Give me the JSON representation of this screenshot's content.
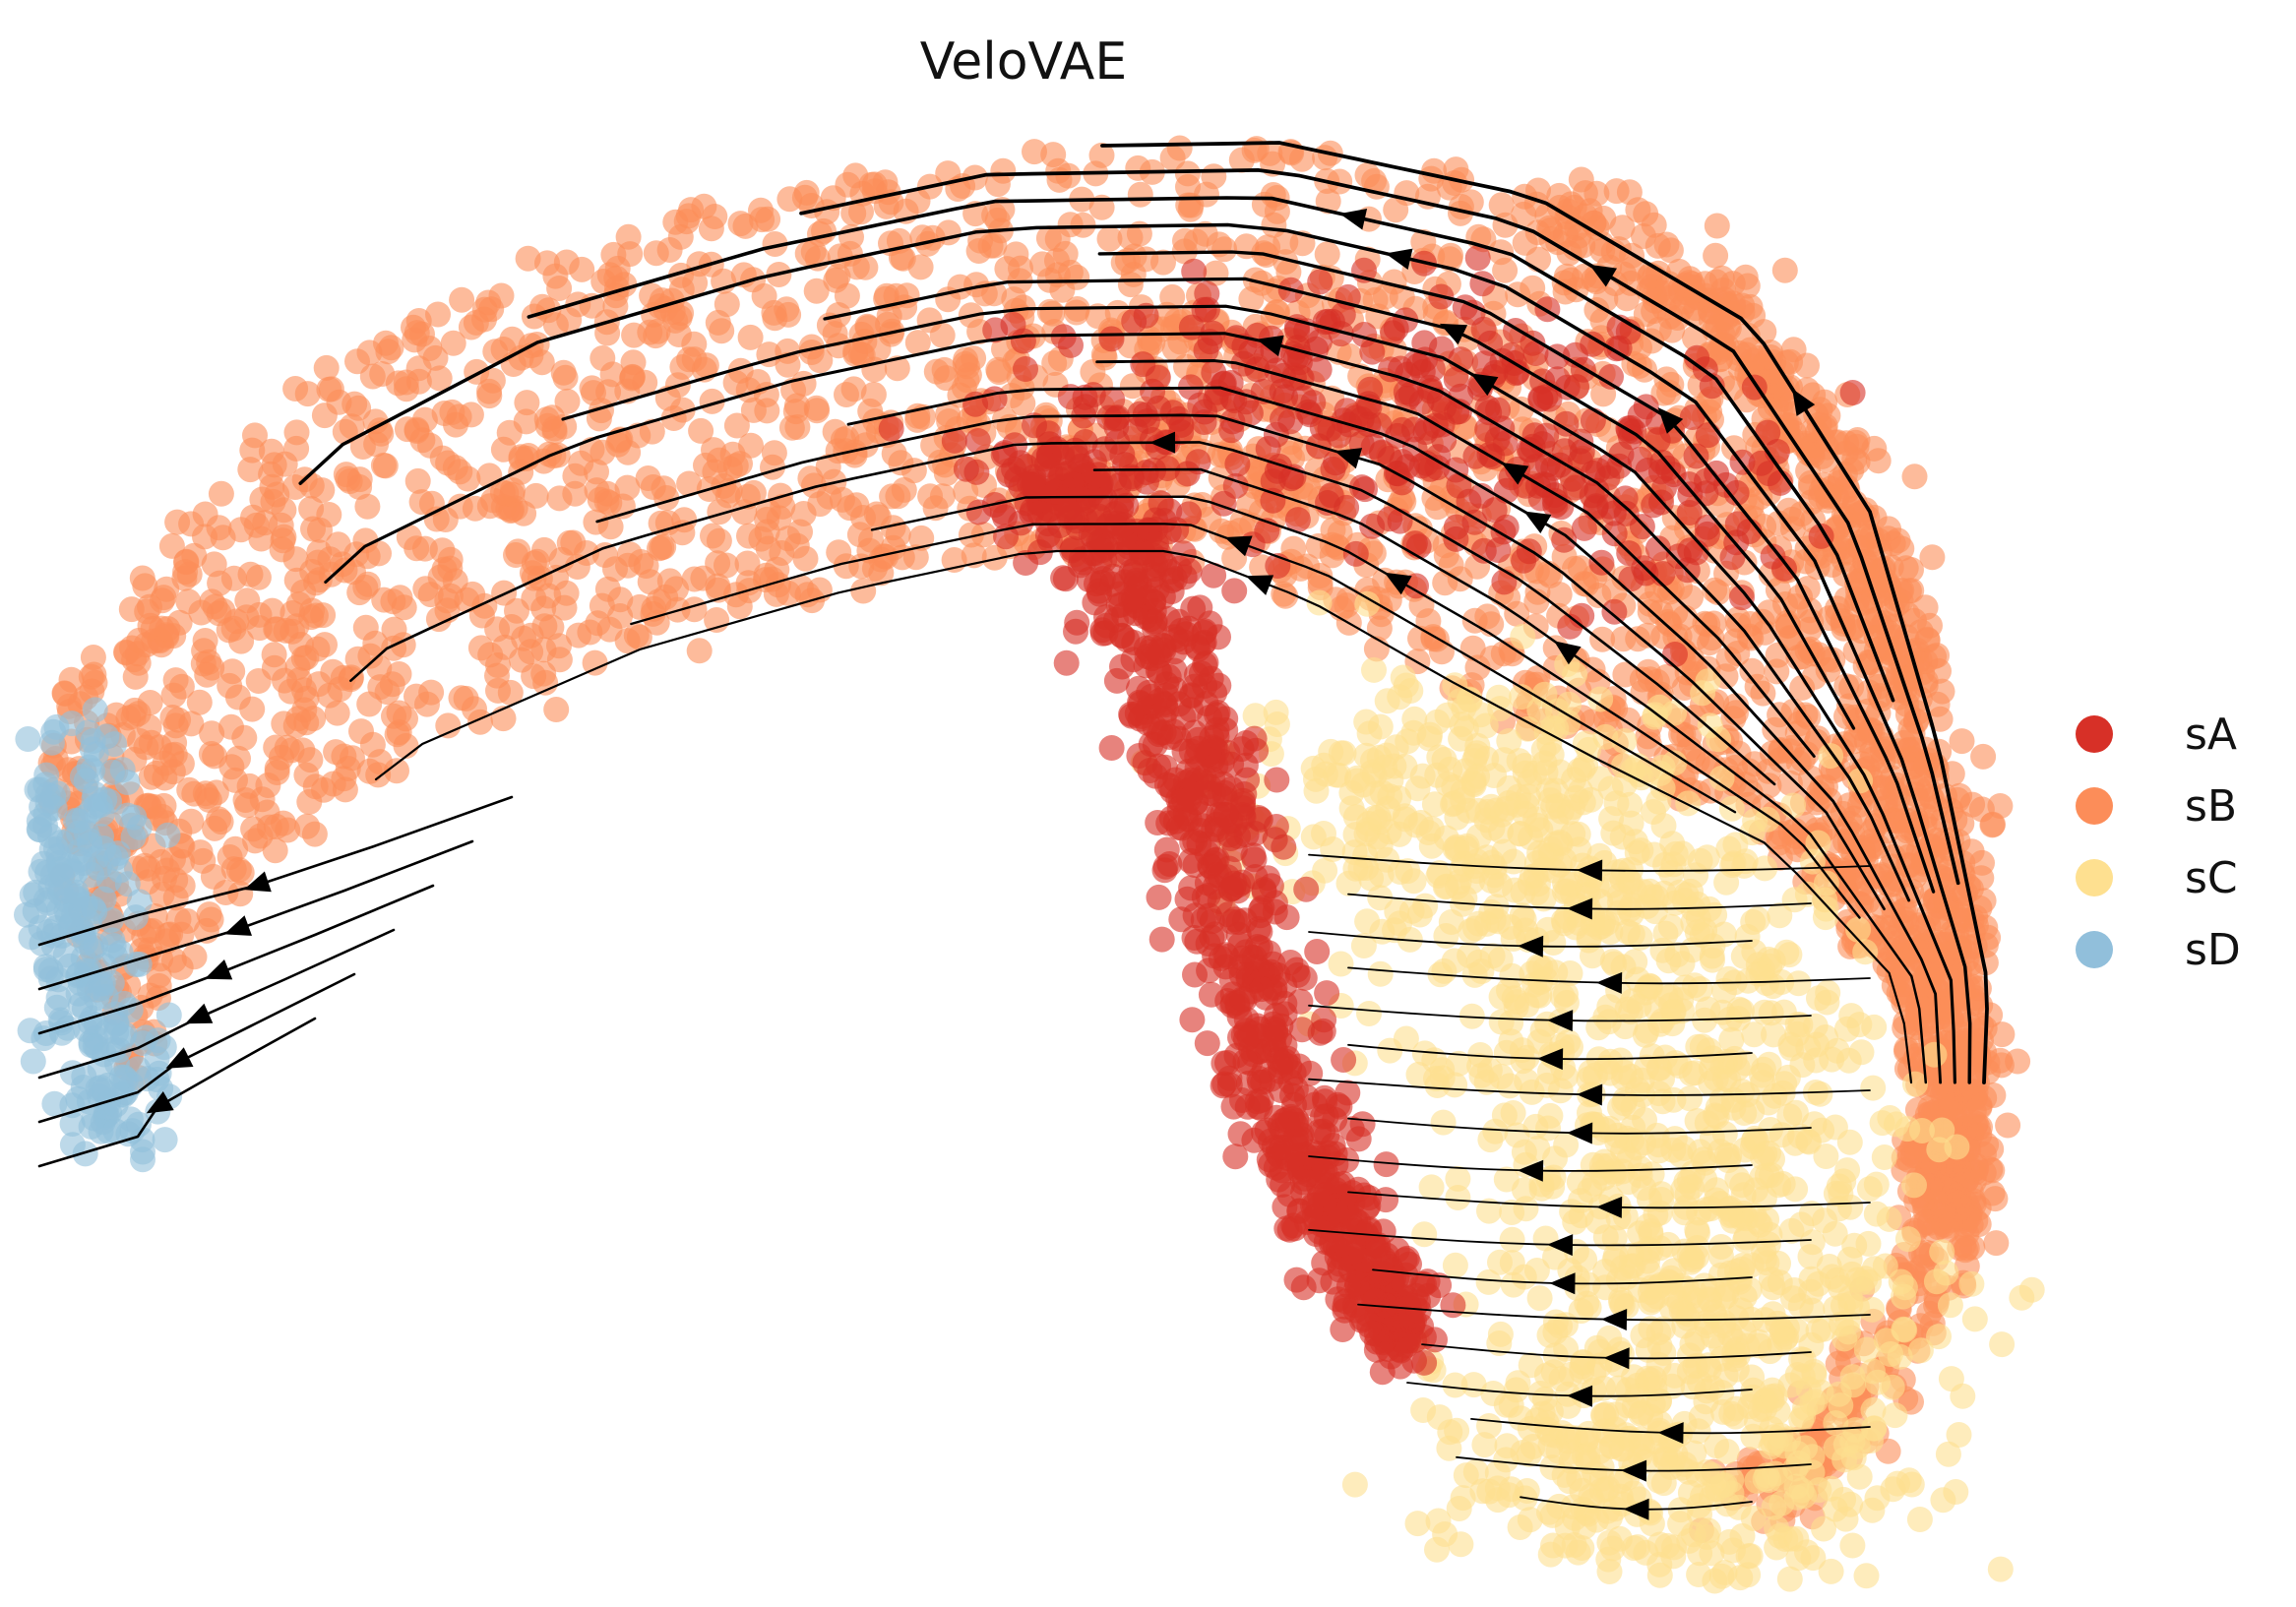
{
  "chart_data": {
    "type": "scatter",
    "title": "VeloVAE",
    "xlabel": "",
    "ylabel": "",
    "axes_visible": false,
    "grid": false,
    "legend_position": "right",
    "streamlines": true,
    "streamline_color": "#000000",
    "point_opacity": 0.6,
    "series": [
      {
        "name": "sA",
        "color": "#d73027",
        "region": "inner ridge of the arc, dense diagonal band ending lower-center"
      },
      {
        "name": "sB",
        "color": "#fc8d59",
        "region": "upper arc spanning left to right and outer right edge"
      },
      {
        "name": "sC",
        "color": "#fee090",
        "region": "lower-right lobe"
      },
      {
        "name": "sD",
        "color": "#91bfdb",
        "region": "far-left tip of the arc"
      }
    ]
  }
}
